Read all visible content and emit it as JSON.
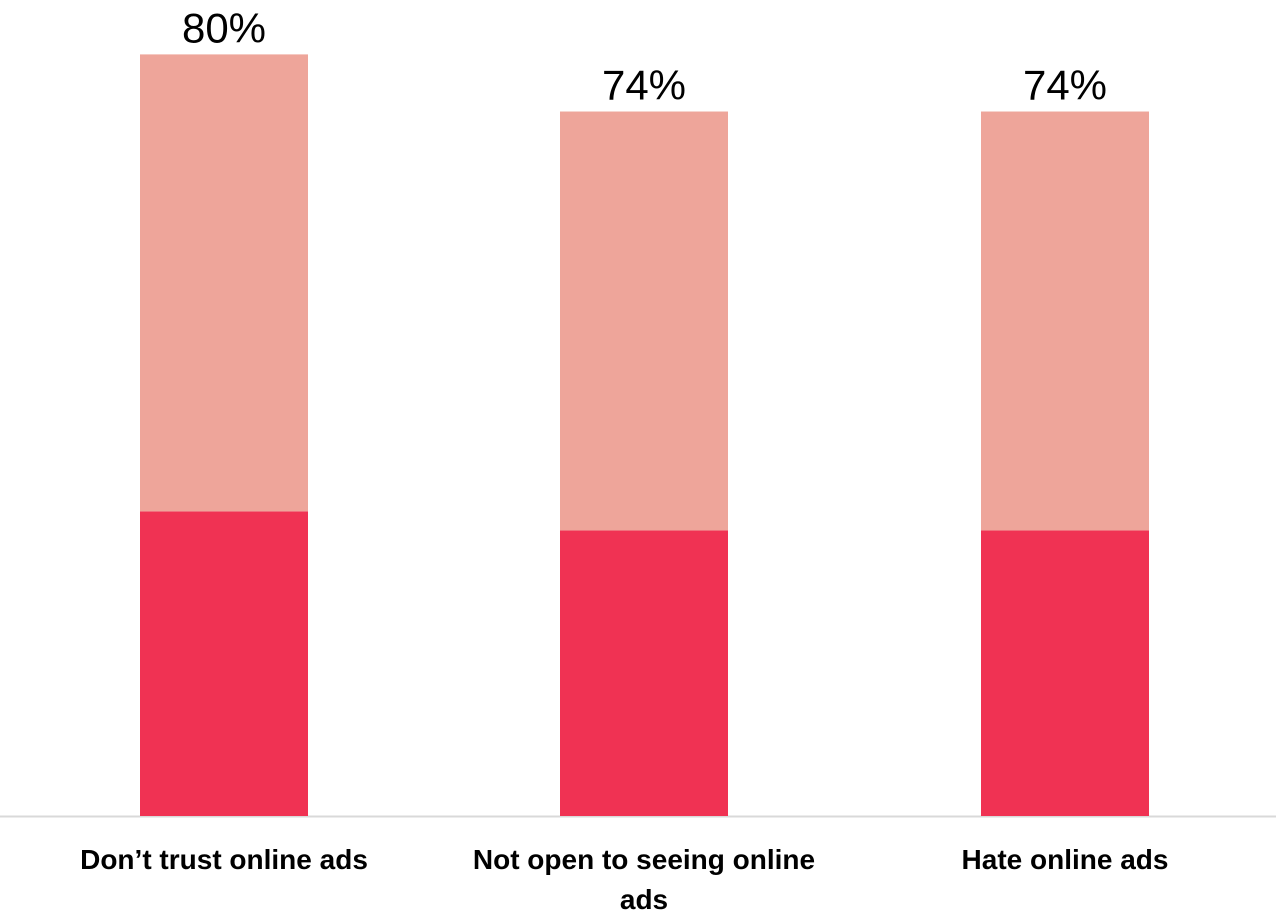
{
  "chart_data": {
    "type": "bar",
    "stacked": true,
    "categories": [
      "Don’t trust online ads",
      "Not open to seeing online ads",
      "Hate online ads"
    ],
    "series": [
      {
        "values": [
          32,
          30,
          30
        ],
        "color": "#f03253"
      },
      {
        "values": [
          48,
          44,
          44
        ],
        "color": "#eea59a"
      }
    ],
    "totals": [
      80,
      74,
      74
    ],
    "total_labels": [
      "80%",
      "74%",
      "74%"
    ],
    "title": "",
    "xlabel": "",
    "ylabel": "",
    "ylim": [
      0,
      100
    ],
    "grid": false,
    "legend": "none",
    "axis_line_color": "#d9d9d9"
  }
}
